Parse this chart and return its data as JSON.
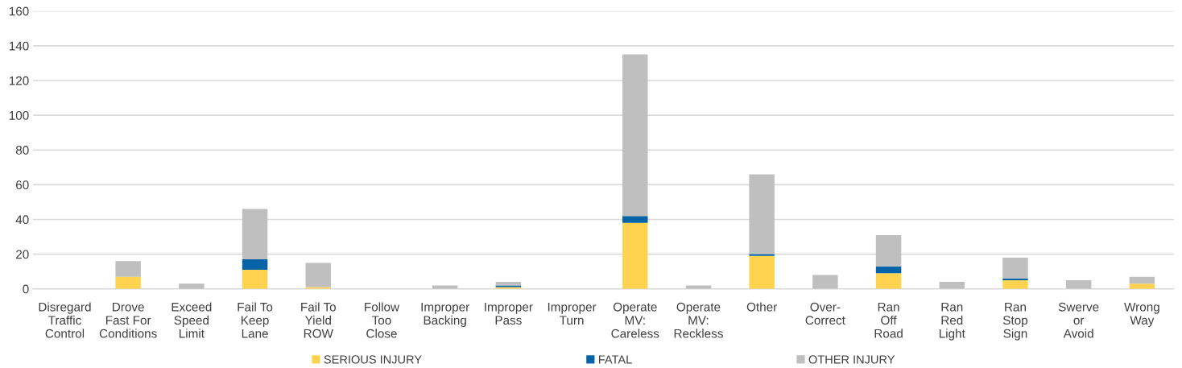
{
  "chart_data": {
    "type": "bar",
    "stacked": true,
    "categories": [
      "Disregard\nTraffic\nControl",
      "Drove\nFast For\nConditions",
      "Exceed\nSpeed\nLimit",
      "Fail To\nKeep\nLane",
      "Fail To\nYield\nROW",
      "Follow\nToo\nClose",
      "Improper\nBacking",
      "Improper\nPass",
      "Improper\nTurn",
      "Operate\nMV:\nCareless",
      "Operate\nMV:\nReckless",
      "Other",
      "Over-\nCorrect",
      "Ran\nOff\nRoad",
      "Ran\nRed\nLight",
      "Ran\nStop\nSign",
      "Swerve\nor\nAvoid",
      "Wrong\nWay"
    ],
    "series": [
      {
        "name": "SERIOUS INJURY",
        "color": "#ffd34f",
        "values": [
          0,
          7,
          0,
          11,
          1,
          0,
          0,
          1,
          0,
          38,
          0,
          19,
          0,
          9,
          0,
          5,
          0,
          3
        ]
      },
      {
        "name": "FATAL",
        "color": "#0563a8",
        "values": [
          0,
          0,
          0,
          6,
          0,
          0,
          0,
          1,
          0,
          4,
          0,
          1,
          0,
          4,
          0,
          1,
          0,
          0
        ]
      },
      {
        "name": "OTHER INJURY",
        "color": "#bfbfbf",
        "values": [
          0,
          9,
          3,
          29,
          14,
          0,
          2,
          2,
          0,
          93,
          2,
          46,
          8,
          18,
          4,
          12,
          5,
          4
        ]
      }
    ],
    "ylim": [
      0,
      160
    ],
    "yticks": [
      0,
      20,
      40,
      60,
      80,
      100,
      120,
      140,
      160
    ],
    "grid": "y",
    "legend": "bottom"
  }
}
